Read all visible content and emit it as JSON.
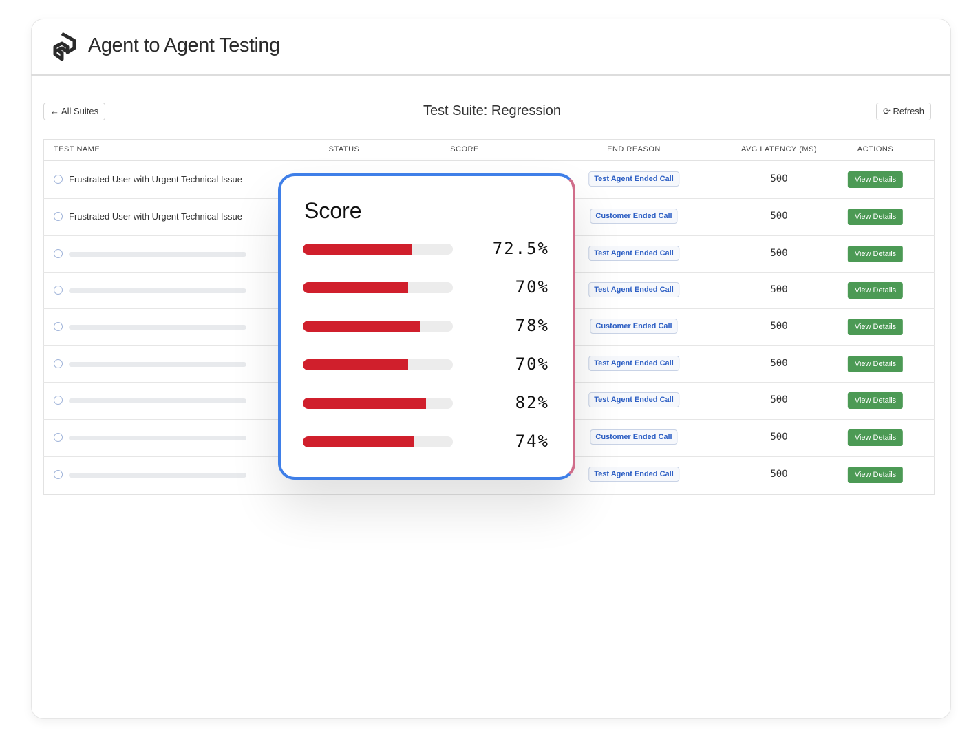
{
  "header": {
    "title": "Agent to Agent Testing"
  },
  "toolbar": {
    "back_button": "All Suites",
    "title": "Test Suite: Regression",
    "refresh_button": "Refresh"
  },
  "table": {
    "columns": [
      "TEST NAME",
      "STATUS",
      "SCORE",
      "END REASON",
      "AVG LATENCY (MS)",
      "ACTIONS"
    ],
    "rows": [
      {
        "name": "Frustrated User with Urgent Technical Issue",
        "end_reason": "Test Agent Ended Call",
        "latency": 500,
        "action": "View Details"
      },
      {
        "name": "Frustrated User with Urgent Technical Issue",
        "end_reason": "Customer Ended Call",
        "latency": 500,
        "action": "View Details"
      },
      {
        "name": null,
        "end_reason": "Test Agent Ended Call",
        "latency": 500,
        "action": "View Details"
      },
      {
        "name": null,
        "end_reason": "Test Agent Ended Call",
        "latency": 500,
        "action": "View Details"
      },
      {
        "name": null,
        "end_reason": "Customer Ended Call",
        "latency": 500,
        "action": "View Details"
      },
      {
        "name": null,
        "end_reason": "Test Agent Ended Call",
        "latency": 500,
        "action": "View Details"
      },
      {
        "name": null,
        "end_reason": "Test Agent Ended Call",
        "latency": 500,
        "action": "View Details"
      },
      {
        "name": null,
        "end_reason": "Customer Ended Call",
        "latency": 500,
        "action": "View Details"
      },
      {
        "name": null,
        "end_reason": "Test Agent Ended Call",
        "latency": 500,
        "action": "View Details"
      }
    ]
  },
  "score_card": {
    "title": "Score",
    "scores": [
      {
        "value": 72.5,
        "label": "72.5%"
      },
      {
        "value": 70,
        "label": "70%"
      },
      {
        "value": 78,
        "label": "78%"
      },
      {
        "value": 70,
        "label": "70%"
      },
      {
        "value": 82,
        "label": "82%"
      },
      {
        "value": 74,
        "label": "74%"
      }
    ]
  }
}
